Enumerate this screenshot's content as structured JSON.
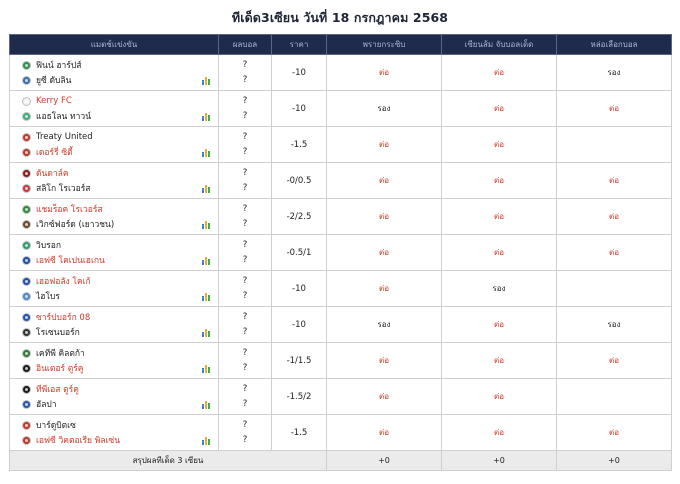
{
  "title": "ทีเด็ด3เซียน วันที่ 18 กรกฎาคม 2568",
  "headers": {
    "match": "แมตช์แข่งขัน",
    "result": "ผลบอล",
    "price": "ราคา",
    "tipster1": "พรายกระซิบ",
    "tipster2": "เซียนส้ม จับบอลเด็ด",
    "tipster3": "หล่อเลือกบอล"
  },
  "rows": [
    {
      "home": "ฟินน์ ฮาร์ปส์",
      "away": "ยูซี ดับลิน",
      "home_fav": false,
      "away_fav": false,
      "home_logo": "#2f8f4e",
      "away_logo": "#3a6fb8",
      "score_home": "?",
      "score_away": "?",
      "price": "-10",
      "t1": "ต่อ",
      "t2": "ต่อ",
      "t3": "รอง"
    },
    {
      "home": "Kerry FC",
      "away": "แอธโลน ทาวน์",
      "home_fav": true,
      "away_fav": false,
      "home_logo": "#f2f2f2",
      "away_logo": "#3bb07a",
      "score_home": "?",
      "score_away": "?",
      "price": "-10",
      "t1": "รอง",
      "t2": "ต่อ",
      "t3": "ต่อ"
    },
    {
      "home": "Treaty United",
      "away": "เดอร์รี่ ซิตี้",
      "home_fav": false,
      "away_fav": true,
      "home_logo": "#c0392b",
      "away_logo": "#c0392b",
      "score_home": "?",
      "score_away": "?",
      "price": "-1.5",
      "t1": "ต่อ",
      "t2": "ต่อ",
      "t3": ""
    },
    {
      "home": "ดันดาล์ค",
      "away": "สลิโก โรเวอร์ส",
      "home_fav": true,
      "away_fav": false,
      "home_logo": "#8a1c1c",
      "away_logo": "#c93a3a",
      "score_home": "?",
      "score_away": "?",
      "price": "-0/0.5",
      "t1": "ต่อ",
      "t2": "ต่อ",
      "t3": "ต่อ"
    },
    {
      "home": "แชมร็อค โรเวอร์ส",
      "away": "เวิกซ์ฟอร์ด (เยาวชน)",
      "home_fav": true,
      "away_fav": false,
      "home_logo": "#2e8b3a",
      "away_logo": "#6b4a2a",
      "score_home": "?",
      "score_away": "?",
      "price": "-2/2.5",
      "t1": "ต่อ",
      "t2": "ต่อ",
      "t3": "ต่อ"
    },
    {
      "home": "วิบรอก",
      "away": "เอฟซี โคเปนเฮเกน",
      "home_fav": false,
      "away_fav": true,
      "home_logo": "#2a9d6a",
      "away_logo": "#1f4fa8",
      "score_home": "?",
      "score_away": "?",
      "price": "-0.5/1",
      "t1": "ต่อ",
      "t2": "ต่อ",
      "t3": "ต่อ"
    },
    {
      "home": "เฮอฟอลัง โคเก้",
      "away": "ไฮโบร",
      "home_fav": true,
      "away_fav": false,
      "home_logo": "#1f4fa8",
      "away_logo": "#4a8ad8",
      "score_home": "?",
      "score_away": "?",
      "price": "-10",
      "t1": "ต่อ",
      "t2": "รอง",
      "t3": ""
    },
    {
      "home": "ซาร์ปบอร์ก 08",
      "away": "โรเซนบอร์ก",
      "home_fav": true,
      "away_fav": false,
      "home_logo": "#2456b0",
      "away_logo": "#333333",
      "score_home": "?",
      "score_away": "?",
      "price": "-10",
      "t1": "รอง",
      "t2": "ต่อ",
      "t3": "รอง"
    },
    {
      "home": "เคทีพี คิลตก้า",
      "away": "อินเตอร์ ตูร์คู",
      "home_fav": false,
      "away_fav": true,
      "home_logo": "#2e7d32",
      "away_logo": "#1a1a1a",
      "score_home": "?",
      "score_away": "?",
      "price": "-1/1.5",
      "t1": "ต่อ",
      "t2": "ต่อ",
      "t3": "ต่อ"
    },
    {
      "home": "ทีพีเอส ตูร์คู",
      "away": "ฮัลปา",
      "home_fav": true,
      "away_fav": false,
      "home_logo": "#1a1a1a",
      "away_logo": "#2456b0",
      "score_home": "?",
      "score_away": "?",
      "price": "-1.5/2",
      "t1": "ต่อ",
      "t2": "ต่อ",
      "t3": ""
    },
    {
      "home": "บาร์ดูบิตเซ",
      "away": "เอฟซี วิคตอเรีย พิลเซ่น",
      "home_fav": false,
      "away_fav": true,
      "home_logo": "#c0392b",
      "away_logo": "#c0392b",
      "score_home": "?",
      "score_away": "?",
      "price": "-1.5",
      "t1": "ต่อ",
      "t2": "ต่อ",
      "t3": "ต่อ"
    }
  ],
  "summary": {
    "label": "สรุปผลทีเด็ด 3 เซียน",
    "t1": "+0",
    "t2": "+0",
    "t3": "+0"
  },
  "colors": {
    "header_bg": "#1f2b4c",
    "favorite_text": "#d43a2a",
    "tip_win": "#d43a2a"
  },
  "icons": {
    "stats": "bar-chart-icon",
    "team_logo": "team-logo-icon"
  }
}
